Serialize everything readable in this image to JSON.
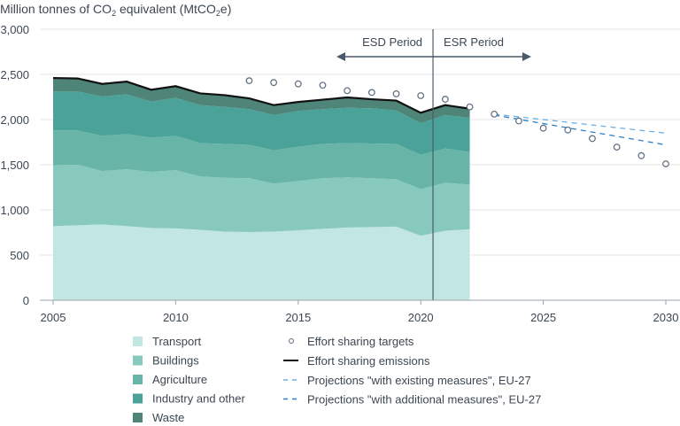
{
  "chart_data": {
    "type": "area",
    "title": "",
    "ylabel_main": "Million tonnes of CO",
    "ylabel_sub": "2",
    "ylabel_mid": " equivalent (MtCO",
    "ylabel_sub2": "2",
    "ylabel_end": "e)",
    "ylim": [
      0,
      3000
    ],
    "xlim": [
      2005,
      2030
    ],
    "yticks": [
      "0",
      "500",
      "1,000",
      "1,500",
      "2,000",
      "2,500",
      "3,000"
    ],
    "ytick_values": [
      0,
      500,
      1000,
      1500,
      2000,
      2500,
      3000
    ],
    "xticks": [
      "2005",
      "2010",
      "2015",
      "2020",
      "2025",
      "2030"
    ],
    "xtick_values": [
      2005,
      2010,
      2015,
      2020,
      2025,
      2030
    ],
    "grid": true,
    "legend_position": "bottom",
    "x": [
      2005,
      2006,
      2007,
      2008,
      2009,
      2010,
      2011,
      2012,
      2013,
      2014,
      2015,
      2016,
      2017,
      2018,
      2019,
      2020,
      2021,
      2022
    ],
    "series": [
      {
        "name": "Transport",
        "color": "#c2e6e1",
        "values": [
          820,
          830,
          840,
          820,
          800,
          795,
          780,
          760,
          755,
          760,
          775,
          790,
          805,
          810,
          815,
          715,
          770,
          785
        ]
      },
      {
        "name": "Buildings",
        "color": "#88c9bd",
        "values": [
          675,
          670,
          590,
          630,
          620,
          645,
          590,
          595,
          595,
          530,
          545,
          560,
          555,
          540,
          525,
          515,
          530,
          495
        ]
      },
      {
        "name": "Agriculture",
        "color": "#68b5a8",
        "values": [
          385,
          380,
          390,
          390,
          380,
          380,
          370,
          375,
          370,
          370,
          380,
          380,
          380,
          385,
          390,
          380,
          380,
          360
        ]
      },
      {
        "name": "Industry and other",
        "color": "#4aa298",
        "values": [
          430,
          430,
          435,
          440,
          400,
          420,
          420,
          410,
          395,
          390,
          395,
          385,
          390,
          390,
          370,
          350,
          370,
          380
        ]
      },
      {
        "name": "Waste",
        "color": "#4f8579",
        "values": [
          150,
          145,
          140,
          140,
          130,
          130,
          130,
          130,
          120,
          110,
          100,
          105,
          115,
          100,
          110,
          115,
          110,
          100
        ]
      }
    ],
    "emissions": {
      "name": "Effort sharing emissions",
      "color": "#111111",
      "values": [
        2460,
        2455,
        2395,
        2420,
        2330,
        2370,
        2290,
        2270,
        2235,
        2160,
        2195,
        2220,
        2245,
        2225,
        2210,
        2075,
        2160,
        2120
      ]
    },
    "targets": {
      "name": "Effort sharing targets",
      "color": "#5a6b7d",
      "x": [
        2013,
        2014,
        2015,
        2016,
        2017,
        2018,
        2019,
        2020,
        2021,
        2022,
        2023,
        2024,
        2025,
        2026,
        2027,
        2028,
        2029,
        2030
      ],
      "values": [
        2430,
        2410,
        2395,
        2380,
        2320,
        2300,
        2285,
        2265,
        2225,
        2140,
        2060,
        1985,
        1905,
        1885,
        1790,
        1695,
        1600,
        1510
      ]
    },
    "projections": [
      {
        "name": "Projections \"with existing measures\", EU-27",
        "color": "#6ab0e4",
        "x": [
          2023,
          2030
        ],
        "values": [
          2060,
          1850
        ]
      },
      {
        "name": "Projections \"with additional measures\", EU-27",
        "color": "#2a7fc9",
        "x": [
          2023,
          2030
        ],
        "values": [
          2050,
          1720
        ]
      }
    ],
    "annotations": {
      "divider_year": 2020.5,
      "esd_label": "ESD Period",
      "esr_label": "ESR Period"
    }
  }
}
